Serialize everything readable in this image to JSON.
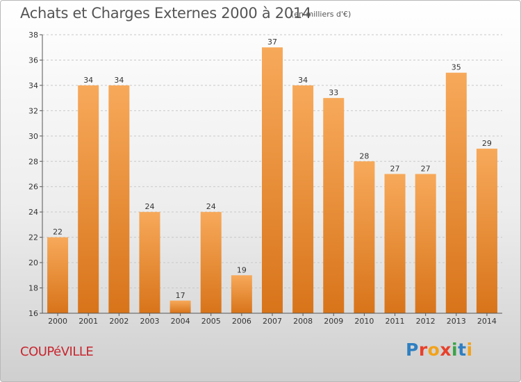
{
  "header": {
    "title": "Achats et Charges Externes 2000 à 2014",
    "unit": "(en milliers d'€)"
  },
  "footer": {
    "city": "COUPéVILLE",
    "logo_text": "Proxiti",
    "logo_letters": [
      {
        "ch": "P",
        "color": "#2f7fc1"
      },
      {
        "ch": "r",
        "color": "#e8402a"
      },
      {
        "ch": "o",
        "color": "#f2a21a"
      },
      {
        "ch": "x",
        "color": "#e8402a"
      },
      {
        "ch": "i",
        "color": "#3aa347"
      },
      {
        "ch": "t",
        "color": "#2f7fc1"
      },
      {
        "ch": "i",
        "color": "#f2a21a"
      }
    ]
  },
  "colors": {
    "bar_light": "#f7a95a",
    "bar_dark": "#d8741a",
    "grid": "#c8c8c8",
    "title": "#555555",
    "city": "#c8262f"
  },
  "chart_data": {
    "type": "bar",
    "title": "Achats et Charges Externes 2000 à 2014",
    "unit": "(en milliers d'€)",
    "categories": [
      "2000",
      "2001",
      "2002",
      "2003",
      "2004",
      "2005",
      "2006",
      "2007",
      "2008",
      "2009",
      "2010",
      "2011",
      "2012",
      "2013",
      "2014"
    ],
    "values": [
      22,
      34,
      34,
      24,
      17,
      24,
      19,
      37,
      34,
      33,
      28,
      27,
      27,
      35,
      29
    ],
    "ylim": [
      16,
      38
    ],
    "yticks": [
      16,
      18,
      20,
      22,
      24,
      26,
      28,
      30,
      32,
      34,
      36,
      38
    ],
    "grid": "horizontal dashed",
    "legend": "none"
  }
}
